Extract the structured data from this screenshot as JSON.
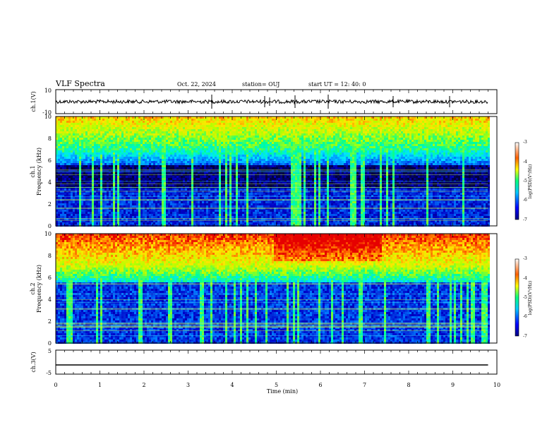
{
  "header": {
    "title": "VLF Spectra",
    "date": "Oct. 22, 2024",
    "station": "station= OUJ",
    "start": "start  UT  =   12: 40: 0"
  },
  "chart_data": [
    {
      "type": "line",
      "name": "ch1-waveform",
      "ylabel": "ch.1(V)",
      "ylim": [
        -10,
        10
      ],
      "ytick_labels": [
        "10",
        "-10"
      ],
      "xlim": [
        0,
        10
      ],
      "series": [
        {
          "x": [
            0,
            9.8
          ],
          "y": [
            0,
            0
          ]
        }
      ]
    },
    {
      "type": "heatmap",
      "name": "ch1-spectrogram",
      "ylabel_top": "ch.1",
      "ylabel": "Frequency (kHz)",
      "ylim": [
        0,
        10
      ],
      "ytick_labels": [
        "0",
        "2",
        "4",
        "6",
        "8",
        "10"
      ],
      "xlim": [
        0,
        10
      ],
      "data_extent_min": 9.8,
      "colorbar": {
        "label": "log(PSD)(V²/Hz)",
        "range": [
          -7,
          -3
        ],
        "tick_labels": [
          "-3",
          "-4",
          "-5",
          "-6",
          "-7"
        ]
      }
    },
    {
      "type": "heatmap",
      "name": "ch2-spectrogram",
      "ylabel_top": "ch.2",
      "ylabel": "Frequency (kHz)",
      "ylim": [
        0,
        10
      ],
      "ytick_labels": [
        "0",
        "2",
        "4",
        "6",
        "8",
        "10"
      ],
      "xlim": [
        0,
        10
      ],
      "data_extent_min": 9.8,
      "colorbar": {
        "label": "log(PSD)(V²/Hz)",
        "range": [
          -7,
          -3
        ],
        "tick_labels": [
          "-3",
          "-4",
          "-5",
          "-6",
          "-7"
        ]
      }
    },
    {
      "type": "line",
      "name": "ch3-waveform",
      "ylabel": "ch.3(V)",
      "ylim": [
        -5,
        5
      ],
      "ytick_labels": [
        "5",
        "-5"
      ],
      "xlim": [
        0,
        10
      ],
      "series": [
        {
          "x": [
            0,
            9.8
          ],
          "y": [
            0,
            0
          ]
        }
      ]
    }
  ],
  "xaxis": {
    "label": "Time (min)",
    "range": [
      0,
      10
    ],
    "tick_labels": [
      "0",
      "1",
      "2",
      "3",
      "4",
      "5",
      "6",
      "7",
      "8",
      "9",
      "10"
    ]
  },
  "colors": {
    "axis": "#000000",
    "background": "#ffffff"
  }
}
